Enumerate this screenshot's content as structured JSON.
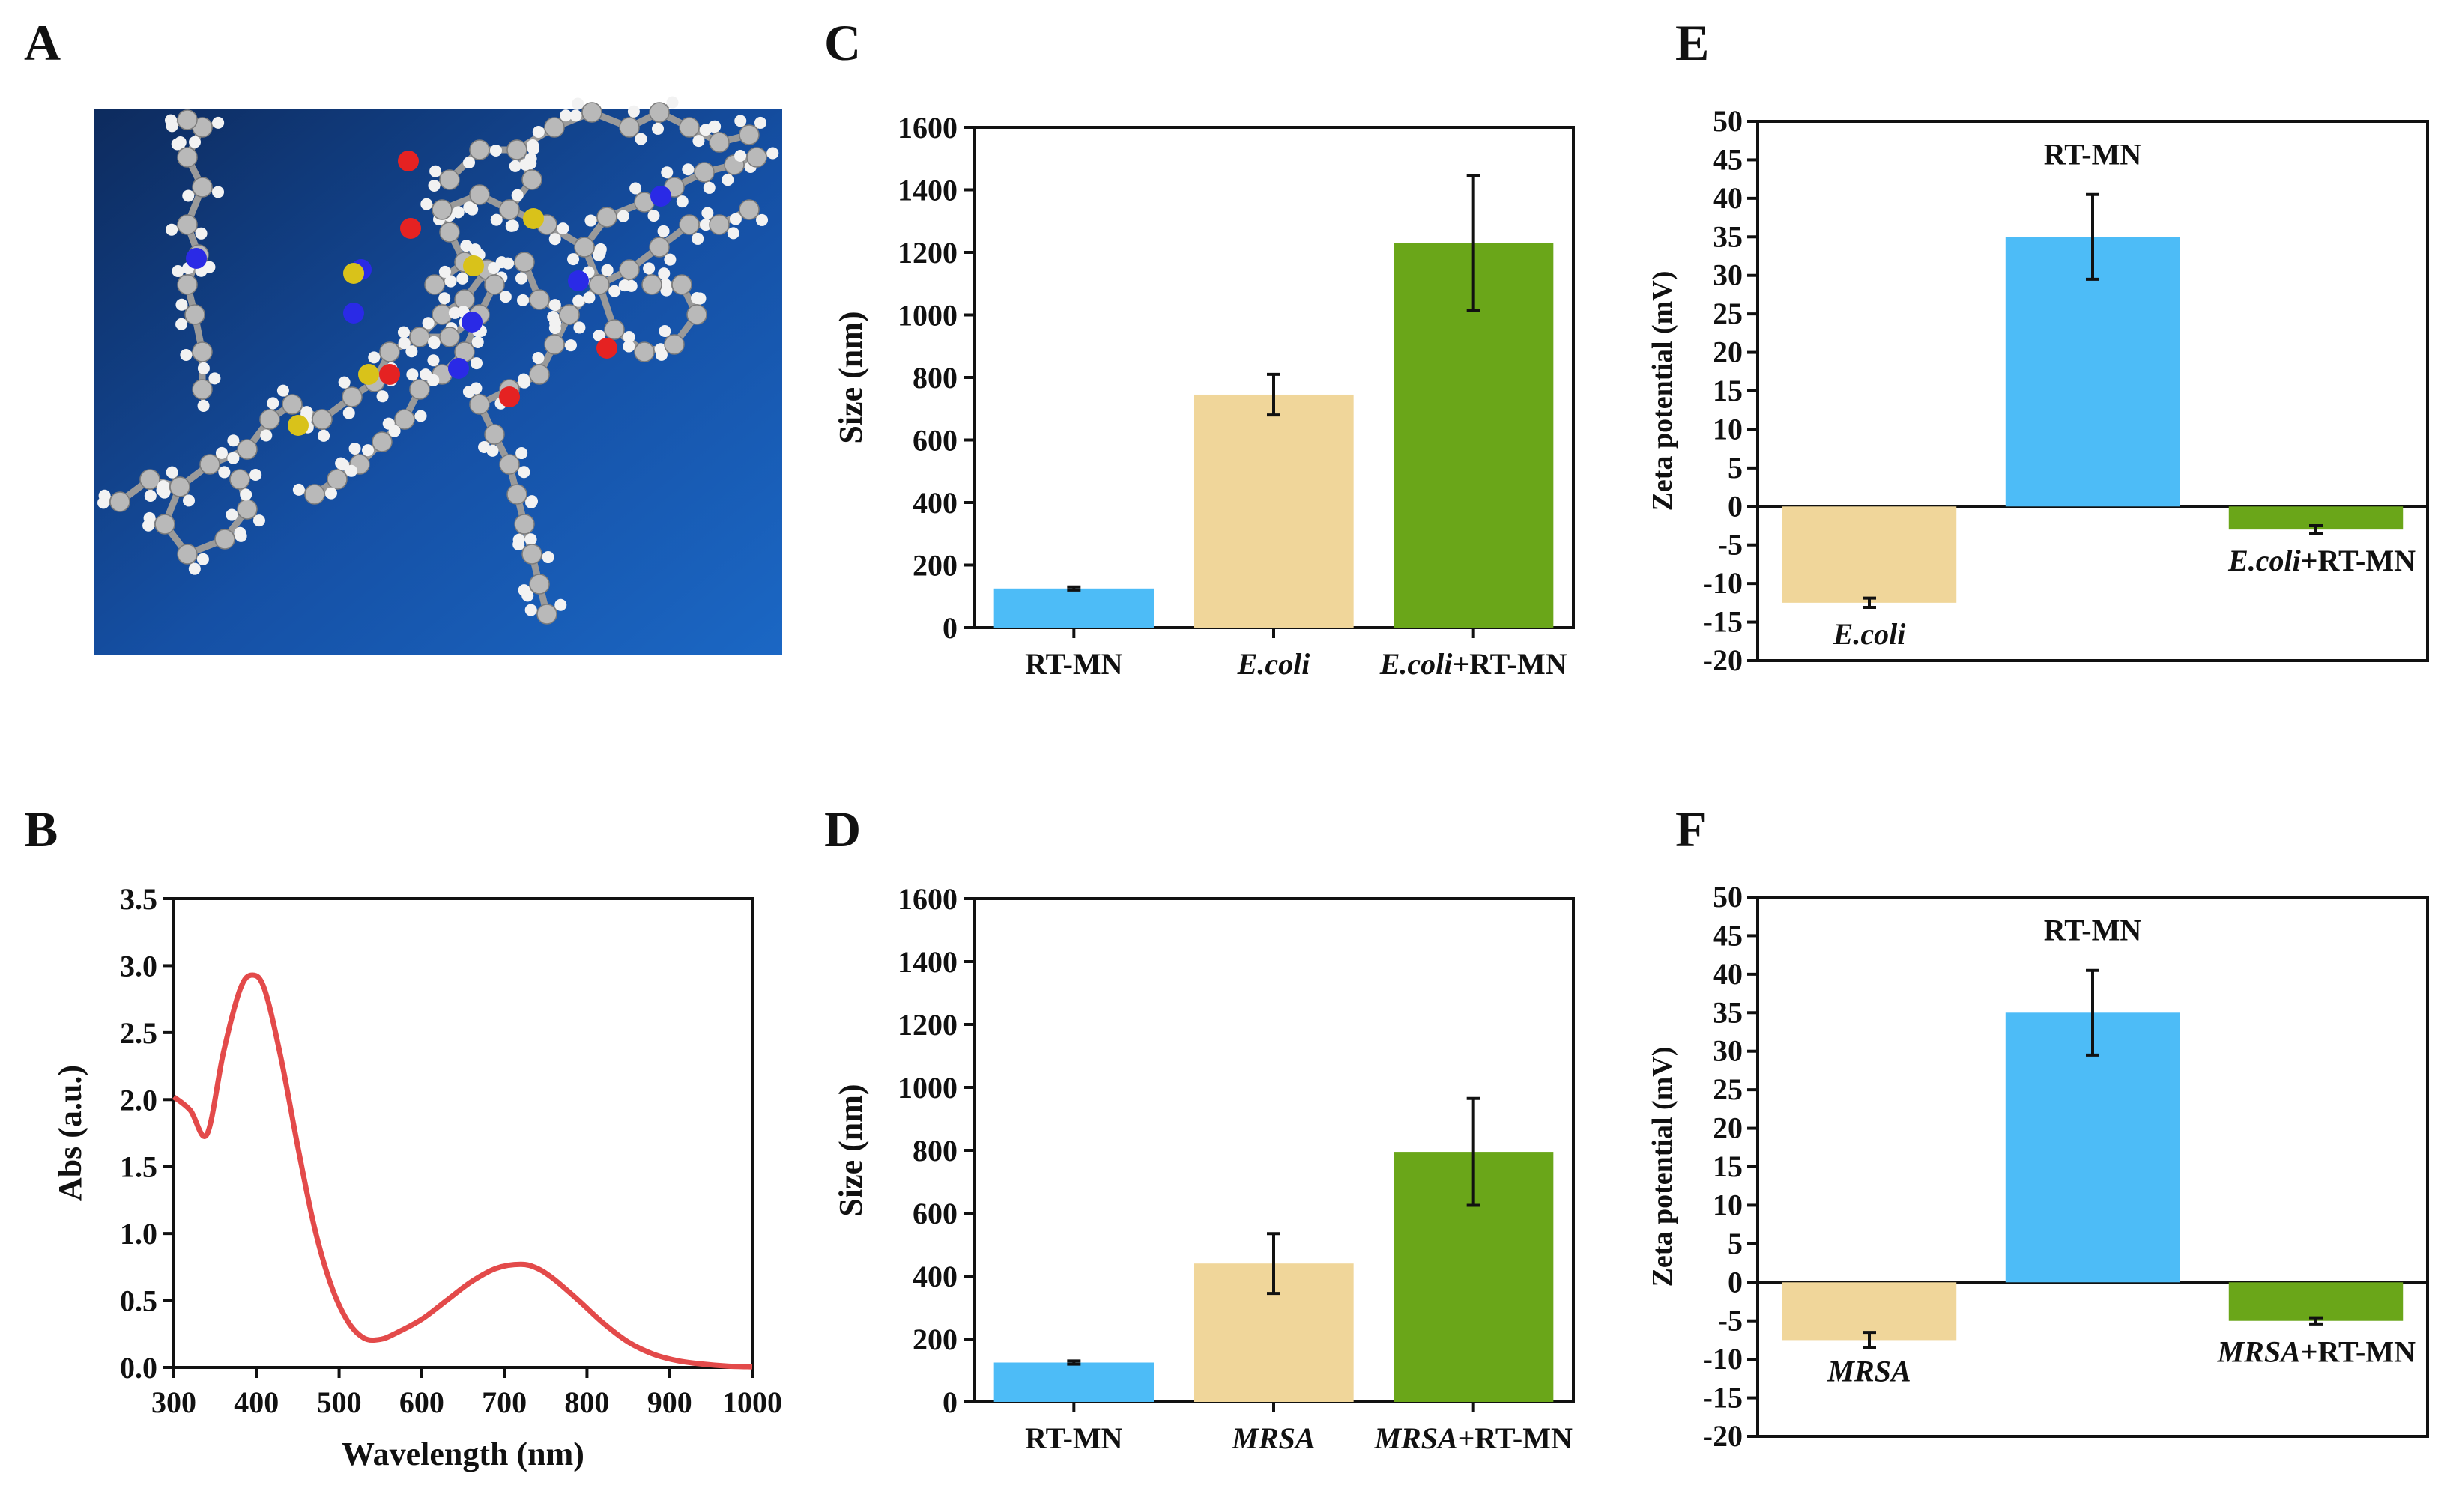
{
  "panels": {
    "A": "A",
    "B": "B",
    "C": "C",
    "D": "D",
    "E": "E",
    "F": "F"
  },
  "colors": {
    "rt_mn": "#4dbcf7",
    "bacteria": "#f0d69a",
    "combo": "#6aa619",
    "spectrum": "#e34a4a",
    "molecule_bg_dark": "#0d2b5e",
    "molecule_bg_light": "#1b67c4"
  },
  "chart_data": [
    {
      "panel": "A",
      "type": "other",
      "description_visible_text": [],
      "atom_colors": {
        "carbon": "#b9b9b9",
        "hydrogen": "#f2f2f2",
        "oxygen": "#e52222",
        "nitrogen": "#2a2ae6",
        "sulfur": "#d9c21a"
      }
    },
    {
      "panel": "B",
      "type": "line",
      "title": "",
      "xlabel": "Wavelength (nm)",
      "ylabel": "Abs (a.u.)",
      "xlim": [
        300,
        1000
      ],
      "ylim": [
        0,
        3.5
      ],
      "xticks": [
        "300",
        "400",
        "500",
        "600",
        "700",
        "800",
        "900",
        "1000"
      ],
      "yticks": [
        "0.0",
        "0.5",
        "1.0",
        "1.5",
        "2.0",
        "2.5",
        "3.0",
        "3.5"
      ],
      "x": [
        300,
        320,
        340,
        360,
        380,
        395,
        410,
        430,
        450,
        470,
        490,
        510,
        530,
        550,
        570,
        600,
        630,
        660,
        690,
        720,
        740,
        760,
        790,
        820,
        850,
        880,
        910,
        940,
        970,
        1000
      ],
      "y": [
        2.02,
        1.92,
        1.74,
        2.35,
        2.82,
        2.93,
        2.82,
        2.3,
        1.65,
        1.05,
        0.62,
        0.35,
        0.22,
        0.21,
        0.26,
        0.36,
        0.5,
        0.64,
        0.74,
        0.77,
        0.74,
        0.66,
        0.5,
        0.33,
        0.19,
        0.1,
        0.05,
        0.025,
        0.01,
        0.005
      ]
    },
    {
      "panel": "C",
      "type": "bar",
      "ylabel": "Size (nm)",
      "ylim": [
        0,
        1600
      ],
      "yticks": [
        "0",
        "200",
        "400",
        "600",
        "800",
        "1000",
        "1200",
        "1400",
        "1600"
      ],
      "categories": [
        {
          "pre": "",
          "ital": "",
          "post": "RT-MN"
        },
        {
          "pre": "",
          "ital": "E.coli",
          "post": ""
        },
        {
          "pre": "",
          "ital": "E.coli",
          "post": "+RT-MN"
        }
      ],
      "values": [
        125,
        745,
        1230
      ],
      "errors": [
        5,
        65,
        215
      ],
      "colors": [
        "#4dbcf7",
        "#f0d69a",
        "#6aa619"
      ]
    },
    {
      "panel": "D",
      "type": "bar",
      "ylabel": "Size (nm)",
      "ylim": [
        0,
        1600
      ],
      "yticks": [
        "0",
        "200",
        "400",
        "600",
        "800",
        "1000",
        "1200",
        "1400",
        "1600"
      ],
      "categories": [
        {
          "pre": "",
          "ital": "",
          "post": "RT-MN"
        },
        {
          "pre": "",
          "ital": "MRSA",
          "post": ""
        },
        {
          "pre": "",
          "ital": "MRSA",
          "post": "+RT-MN"
        }
      ],
      "values": [
        125,
        440,
        795
      ],
      "errors": [
        5,
        95,
        170
      ],
      "colors": [
        "#4dbcf7",
        "#f0d69a",
        "#6aa619"
      ]
    },
    {
      "panel": "E",
      "type": "bar",
      "ylabel": "Zeta potential (mV)",
      "ylim": [
        -20,
        50
      ],
      "yticks": [
        "50",
        "45",
        "40",
        "35",
        "30",
        "25",
        "20",
        "15",
        "10",
        "5",
        "0",
        "-5",
        "-10",
        "-15",
        "-20"
      ],
      "categories": [
        {
          "pre": "",
          "ital": "E.coli",
          "post": ""
        },
        {
          "pre": "",
          "ital": "",
          "post": "RT-MN"
        },
        {
          "pre": "",
          "ital": "E.coli",
          "post": "+RT-MN"
        }
      ],
      "values": [
        -12.5,
        35,
        -3
      ],
      "errors": [
        0.6,
        5.5,
        0.5
      ],
      "colors": [
        "#f0d69a",
        "#4dbcf7",
        "#6aa619"
      ]
    },
    {
      "panel": "F",
      "type": "bar",
      "ylabel": "Zeta potential (mV)",
      "ylim": [
        -20,
        50
      ],
      "yticks": [
        "50",
        "45",
        "40",
        "35",
        "30",
        "25",
        "20",
        "15",
        "10",
        "5",
        "0",
        "-5",
        "-10",
        "-15",
        "-20"
      ],
      "categories": [
        {
          "pre": "",
          "ital": "MRSA",
          "post": ""
        },
        {
          "pre": "",
          "ital": "",
          "post": "RT-MN"
        },
        {
          "pre": "",
          "ital": "MRSA",
          "post": "+RT-MN"
        }
      ],
      "values": [
        -7.5,
        35,
        -5
      ],
      "errors": [
        1.0,
        5.5,
        0.4
      ],
      "colors": [
        "#f0d69a",
        "#4dbcf7",
        "#6aa619"
      ]
    }
  ]
}
